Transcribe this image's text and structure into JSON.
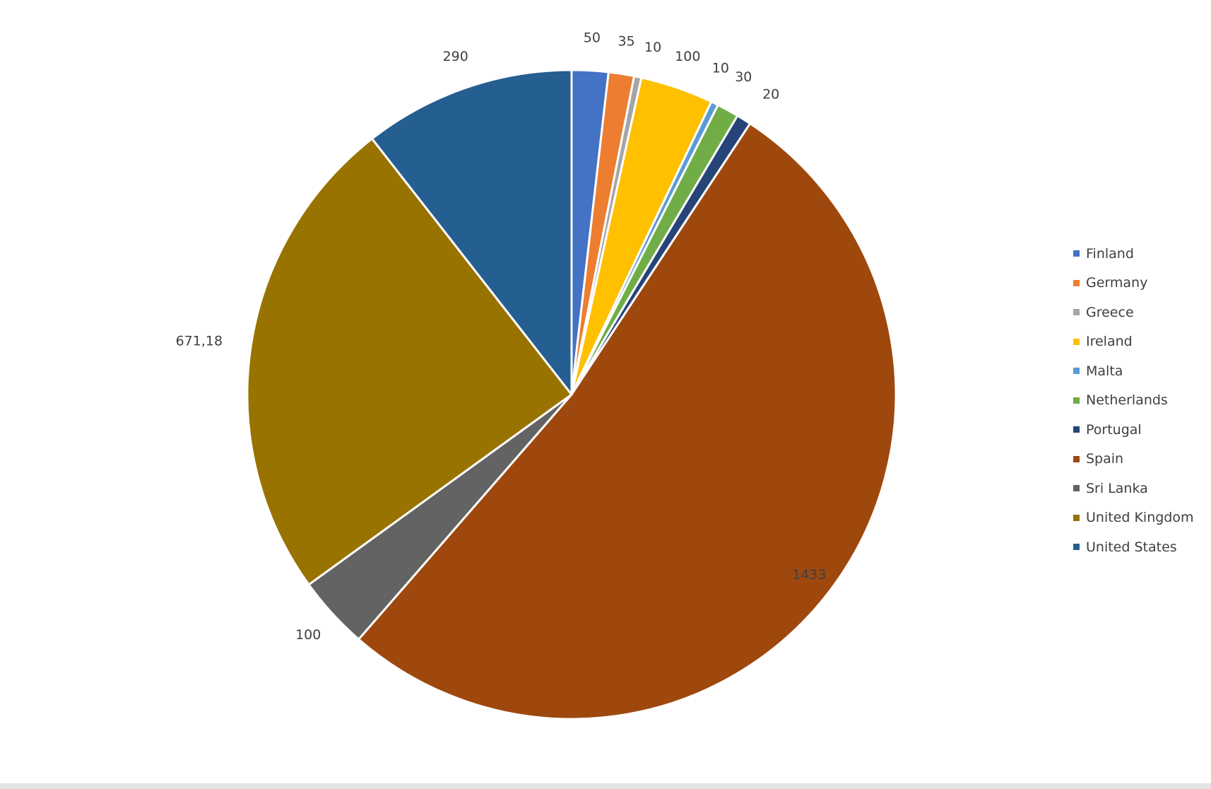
{
  "chart_data": {
    "type": "pie",
    "categories": [
      "Finland",
      "Germany",
      "Greece",
      "Ireland",
      "Malta",
      "Netherlands",
      "Portugal",
      "Spain",
      "Sri Lanka",
      "United Kingdom",
      "United States"
    ],
    "values": [
      50,
      35,
      10,
      100,
      10,
      30,
      20,
      1433,
      100,
      671.18,
      290
    ],
    "data_labels": [
      "50",
      "35",
      "10",
      "100",
      "10",
      "30",
      "20",
      "1433",
      "100",
      "671,18",
      "290"
    ],
    "colors": [
      "#4472c4",
      "#ed7d31",
      "#a5a5a5",
      "#ffc000",
      "#5b9bd5",
      "#70ad47",
      "#264478",
      "#9e480e",
      "#636363",
      "#997300",
      "#255e91"
    ],
    "start_angle_deg": 0,
    "direction": "clockwise",
    "legend_position": "right",
    "title": ""
  }
}
